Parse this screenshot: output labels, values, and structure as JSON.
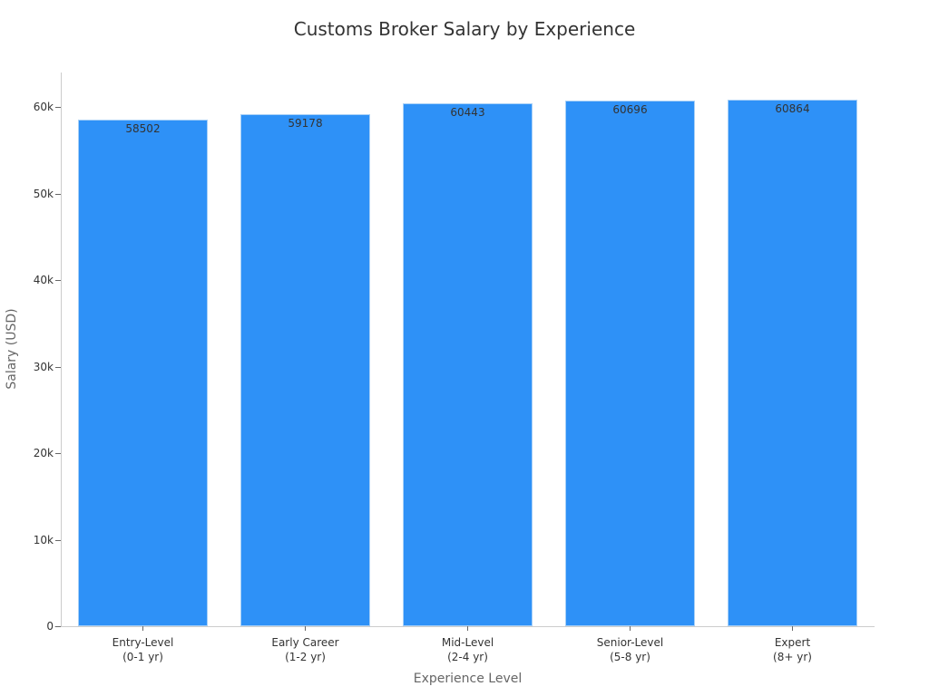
{
  "chart_data": {
    "type": "bar",
    "title": "Customs Broker Salary by Experience",
    "xlabel": "Experience Level",
    "ylabel": "Salary (USD)",
    "categories": [
      "Entry-Level\n(0-1 yr)",
      "Early Career\n(1-2 yr)",
      "Mid-Level\n(2-4 yr)",
      "Senior-Level\n(5-8 yr)",
      "Expert\n(8+ yr)"
    ],
    "values": [
      58502,
      59178,
      60443,
      60696,
      60864
    ],
    "data_labels": [
      "58502",
      "59178",
      "60443",
      "60696",
      "60864"
    ],
    "ylim": [
      0,
      64000
    ],
    "yticks": [
      0,
      10000,
      20000,
      30000,
      40000,
      50000,
      60000
    ],
    "ytick_labels": [
      "0",
      "10k",
      "20k",
      "30k",
      "40k",
      "50k",
      "60k"
    ],
    "grid": false,
    "legend": null,
    "bar_color": "#2e91f7"
  }
}
